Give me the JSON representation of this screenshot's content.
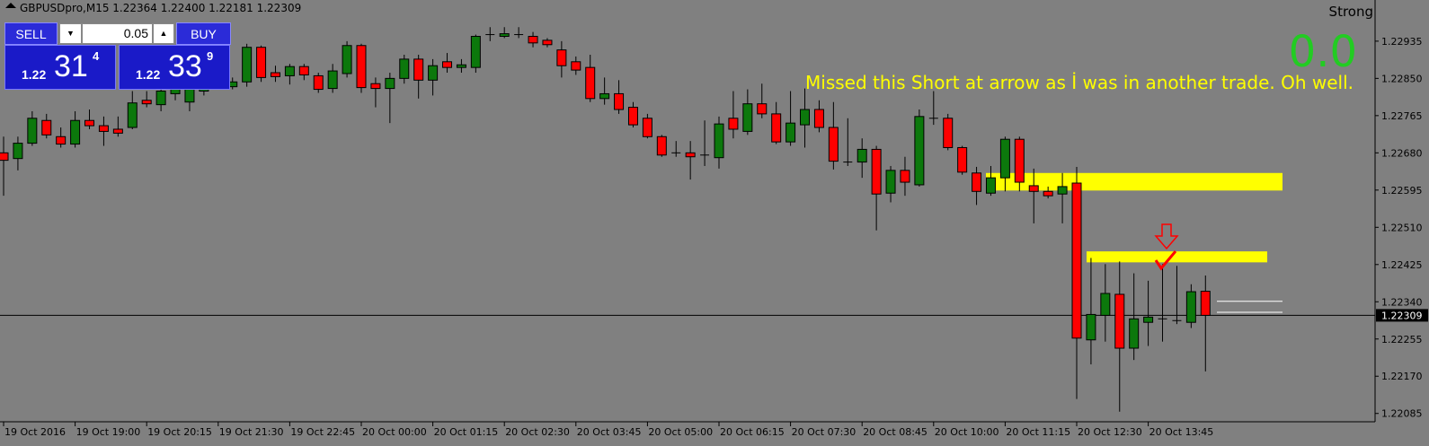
{
  "chart_data": {
    "type": "candlestick",
    "title": "GBPUSDpro,M15  1.22364 1.22400 1.22181 1.22309",
    "strong_label": "Strong",
    "signal_value": "0.0",
    "annotation": "Missed this Short at arrow as İ was in another trade. Oh well.",
    "categories": [
      "19 Oct 2016",
      null,
      null,
      null,
      null,
      "19 Oct 19:00",
      null,
      null,
      null,
      null,
      "19 Oct 20:15",
      null,
      null,
      null,
      null,
      "19 Oct 21:30",
      null,
      null,
      null,
      null,
      "19 Oct 22:45",
      null,
      null,
      null,
      null,
      "20 Oct 00:00",
      null,
      null,
      null,
      null,
      "20 Oct 01:15",
      null,
      null,
      null,
      null,
      "20 Oct 02:30",
      null,
      null,
      null,
      null,
      "20 Oct 03:45",
      null,
      null,
      null,
      null,
      "20 Oct 05:00",
      null,
      null,
      null,
      null,
      "20 Oct 06:15",
      null,
      null,
      null,
      null,
      "20 Oct 07:30",
      null,
      null,
      null,
      null,
      "20 Oct 08:45",
      null,
      null,
      null,
      null,
      "20 Oct 10:00",
      null,
      null,
      null,
      null,
      "20 Oct 11:15",
      null,
      null,
      null,
      null,
      "20 Oct 12:30",
      null,
      null,
      null,
      null,
      "20 Oct 13:45",
      null,
      null,
      null,
      null
    ],
    "open": [
      1.2268,
      1.22667,
      1.22702,
      1.22754,
      1.22717,
      1.227,
      1.22754,
      1.22742,
      1.22734,
      1.22738,
      1.228,
      1.2279,
      1.22815,
      1.22796,
      1.22821,
      1.22852,
      1.22831,
      1.22842,
      1.22921,
      1.22863,
      1.22856,
      1.22877,
      1.22856,
      1.22827,
      1.22861,
      1.22925,
      1.22838,
      1.22827,
      1.2285,
      1.22894,
      1.22846,
      1.22888,
      1.22875,
      1.22875,
      1.2295,
      1.22946,
      1.2295,
      1.22946,
      1.22937,
      1.22915,
      1.22888,
      1.22875,
      1.22804,
      1.22815,
      1.22784,
      1.22759,
      1.22717,
      1.2268,
      1.2268,
      1.22675,
      1.22669,
      1.22759,
      1.22729,
      1.22792,
      1.22769,
      1.22705,
      1.22744,
      1.22779,
      1.22738,
      1.22659,
      1.22659,
      1.22688,
      1.22588,
      1.2264,
      1.22607,
      1.22759,
      1.22759,
      1.22692,
      1.22634,
      1.22588,
      1.22623,
      1.22711,
      1.22605,
      1.22592,
      1.22586,
      1.22611,
      1.22253,
      1.22309,
      1.22357,
      1.22234,
      1.22293,
      1.22301,
      1.22297,
      1.22293,
      1.22364
    ],
    "high": [
      1.22717,
      1.22717,
      1.22775,
      1.22769,
      1.22738,
      1.22775,
      1.22779,
      1.22763,
      1.22763,
      1.22821,
      1.22821,
      1.22831,
      1.22846,
      1.22852,
      1.22852,
      1.22863,
      1.22852,
      1.22929,
      1.22925,
      1.22879,
      1.22883,
      1.22883,
      1.22863,
      1.22883,
      1.22935,
      1.22929,
      1.22852,
      1.22863,
      1.22904,
      1.22904,
      1.22894,
      1.22908,
      1.22894,
      1.2295,
      1.22967,
      1.22967,
      1.22967,
      1.22956,
      1.22942,
      1.22935,
      1.229,
      1.22904,
      1.22852,
      1.22846,
      1.22796,
      1.22769,
      1.22721,
      1.22707,
      1.22707,
      1.22754,
      1.22763,
      1.22821,
      1.22825,
      1.22838,
      1.22796,
      1.22821,
      1.22827,
      1.228,
      1.22796,
      1.22759,
      1.22713,
      1.22696,
      1.2265,
      1.22671,
      1.22779,
      1.22821,
      1.22769,
      1.22696,
      1.22648,
      1.2265,
      1.22717,
      1.22717,
      1.22644,
      1.22603,
      1.22634,
      1.22648,
      1.2244,
      1.22426,
      1.22432,
      1.22405,
      1.22388,
      1.22426,
      1.22422,
      1.2238,
      1.224
    ],
    "low": [
      1.22582,
      1.2264,
      1.22696,
      1.22713,
      1.22692,
      1.22692,
      1.22734,
      1.22696,
      1.22717,
      1.22734,
      1.22784,
      1.22775,
      1.228,
      1.22775,
      1.22811,
      1.22825,
      1.22825,
      1.22831,
      1.22842,
      1.22842,
      1.22836,
      1.22846,
      1.22817,
      1.22817,
      1.22852,
      1.22817,
      1.22784,
      1.22748,
      1.22838,
      1.22804,
      1.22811,
      1.22863,
      1.22863,
      1.22863,
      1.22935,
      1.22942,
      1.22942,
      1.22921,
      1.22921,
      1.22852,
      1.22858,
      1.22796,
      1.2279,
      1.22769,
      1.22738,
      1.22713,
      1.22671,
      1.22671,
      1.22619,
      1.2265,
      1.22644,
      1.22713,
      1.22721,
      1.22759,
      1.227,
      1.22696,
      1.22692,
      1.22727,
      1.22642,
      1.2265,
      1.22623,
      1.22503,
      1.22567,
      1.22582,
      1.22603,
      1.22744,
      1.22686,
      1.2263,
      1.22561,
      1.22582,
      1.22592,
      1.22592,
      1.22519,
      1.22576,
      1.22519,
      1.22118,
      1.22197,
      1.22249,
      1.22089,
      1.22207,
      1.22239,
      1.22249,
      1.22289,
      1.2228,
      1.22181
    ],
    "close": [
      1.22663,
      1.22702,
      1.22759,
      1.22721,
      1.227,
      1.22754,
      1.22742,
      1.22729,
      1.22725,
      1.22794,
      1.22792,
      1.22821,
      1.22827,
      1.22831,
      1.22842,
      1.22831,
      1.22842,
      1.22921,
      1.22852,
      1.22854,
      1.22877,
      1.22858,
      1.22825,
      1.22867,
      1.22925,
      1.22829,
      1.22827,
      1.2285,
      1.22894,
      1.22846,
      1.22879,
      1.22875,
      1.22881,
      1.22946,
      1.2295,
      1.22952,
      1.2295,
      1.22931,
      1.22927,
      1.22879,
      1.22869,
      1.22804,
      1.22815,
      1.22779,
      1.22744,
      1.22717,
      1.22675,
      1.2268,
      1.22671,
      1.22675,
      1.22746,
      1.22734,
      1.22792,
      1.22769,
      1.22705,
      1.22748,
      1.22779,
      1.22738,
      1.22661,
      1.22659,
      1.22688,
      1.22586,
      1.2264,
      1.22613,
      1.22763,
      1.22759,
      1.22692,
      1.22636,
      1.22592,
      1.22623,
      1.22711,
      1.22613,
      1.22592,
      1.22582,
      1.22603,
      1.22257,
      1.22311,
      1.22359,
      1.22234,
      1.22301,
      1.22305,
      1.22301,
      1.22297,
      1.22363,
      1.22309
    ],
    "up_color": "#0c780c",
    "down_color": "#ff0000",
    "ylim": [
      1.22066,
      1.23029
    ],
    "yticks": [
      1.22935,
      {
        "value": 1.2285,
        "label": "1.22850"
      },
      1.22765,
      {
        "value": 1.2268,
        "label": "1.22680"
      },
      1.22595,
      {
        "value": 1.2251,
        "label": "1.22510"
      },
      1.22425,
      {
        "value": 1.2234,
        "label": "1.22340"
      },
      1.22255,
      {
        "value": 1.2217,
        "label": "1.22170"
      },
      1.22085
    ],
    "current_price": 1.22309,
    "zones": [
      {
        "low": 1.22594,
        "high": 1.22634
      },
      {
        "low": 1.2243,
        "high": 1.22455
      }
    ],
    "zone_color": "#ffff00",
    "levels": [
      1.22341,
      1.22316
    ],
    "trade_panel": {
      "sell": "SELL",
      "buy": "BUY",
      "lot": "0.05",
      "bid": {
        "prefix": "1.22",
        "big": "31",
        "small": "4"
      },
      "ask": {
        "prefix": "1.22",
        "big": "33",
        "small": "9"
      }
    }
  }
}
